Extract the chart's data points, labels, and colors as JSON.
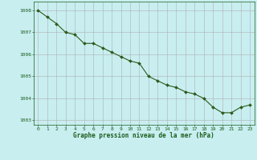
{
  "x": [
    0,
    1,
    2,
    3,
    4,
    5,
    6,
    7,
    8,
    9,
    10,
    11,
    12,
    13,
    14,
    15,
    16,
    17,
    18,
    19,
    20,
    21,
    22,
    23
  ],
  "y": [
    1008.0,
    1007.7,
    1007.4,
    1007.0,
    1006.9,
    1006.5,
    1006.5,
    1006.3,
    1006.1,
    1005.9,
    1005.7,
    1005.6,
    1005.0,
    1004.8,
    1004.6,
    1004.5,
    1004.3,
    1004.2,
    1004.0,
    1003.6,
    1003.35,
    1003.35,
    1003.6,
    1003.7
  ],
  "line_color": "#2d5a1b",
  "marker_color": "#2d5a1b",
  "bg_color": "#c8eef0",
  "grid_color": "#b0b0b0",
  "xlabel": "Graphe pression niveau de la mer (hPa)",
  "xlabel_color": "#1a5c1a",
  "tick_color": "#1a5c1a",
  "ylim": [
    1002.8,
    1008.4
  ],
  "xlim": [
    -0.5,
    23.5
  ],
  "yticks": [
    1003,
    1004,
    1005,
    1006,
    1007,
    1008
  ],
  "xticks": [
    0,
    1,
    2,
    3,
    4,
    5,
    6,
    7,
    8,
    9,
    10,
    11,
    12,
    13,
    14,
    15,
    16,
    17,
    18,
    19,
    20,
    21,
    22,
    23
  ],
  "figsize": [
    3.2,
    2.0
  ],
  "dpi": 100
}
